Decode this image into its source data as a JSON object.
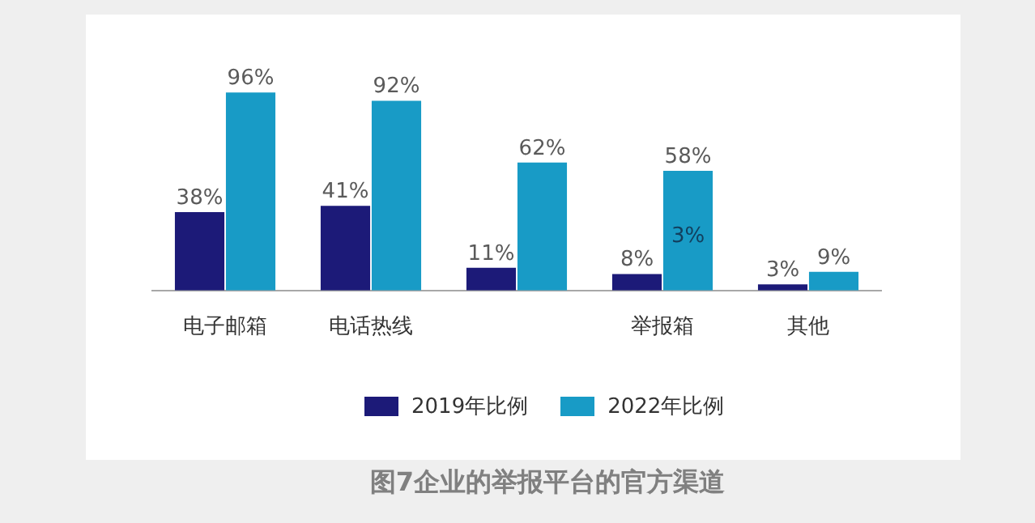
{
  "chart_data": {
    "type": "bar",
    "title": "图7企业的举报平台的官方渠道",
    "categories": [
      "电子邮箱",
      "电话热线",
      null,
      "举报箱",
      "其他"
    ],
    "series": [
      {
        "name": "2019年比例",
        "color": "#1c1a78",
        "values": [
          38,
          41,
          11,
          8,
          3
        ],
        "value_labels": [
          "38%",
          "41%",
          "11%",
          "8%",
          "3%"
        ]
      },
      {
        "name": "2022年比例",
        "color": "#189bc6",
        "values": [
          96,
          92,
          62,
          58,
          9
        ],
        "value_labels": [
          "96%",
          "92%",
          "62%",
          "58%",
          "9%"
        ]
      }
    ],
    "annotations": [
      {
        "text": "3%",
        "x": "举报箱",
        "y": 26
      }
    ],
    "legend": "bottom"
  }
}
